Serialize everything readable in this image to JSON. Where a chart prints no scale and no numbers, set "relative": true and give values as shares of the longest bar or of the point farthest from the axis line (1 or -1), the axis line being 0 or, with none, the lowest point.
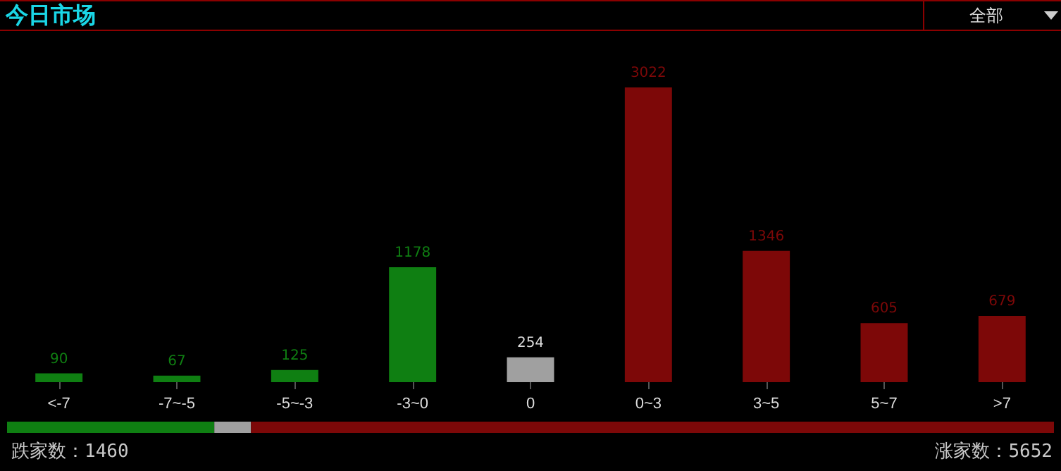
{
  "chart_data": [
    {
      "type": "bar",
      "title": "今日市场",
      "annotations": [
        "全部"
      ],
      "categories": [
        "<-7",
        "-7~-5",
        "-5~-3",
        "-3~0",
        "0",
        "0~3",
        "3~5",
        "5~7",
        ">7"
      ],
      "values": [
        90,
        67,
        125,
        1178,
        254,
        3022,
        1346,
        605,
        679
      ],
      "colors": [
        "#0f7f12",
        "#0f7f12",
        "#0f7f12",
        "#0f7f12",
        "#a0a0a0",
        "#7d0808",
        "#7d0808",
        "#7d0808",
        "#7d0808"
      ],
      "data_labels": true
    },
    {
      "type": "bar",
      "orientation": "horizontal",
      "stacked": true,
      "relative": true,
      "categories": [
        null
      ],
      "tick_labels": false,
      "annotations": [
        "跌家数：1460",
        "涨家数：5652"
      ],
      "series": [
        {
          "color": "#0f7f12",
          "values": [
            0.198
          ]
        },
        {
          "color": "#a0a0a0",
          "values": [
            0.035
          ]
        },
        {
          "color": "#7d0808",
          "values": [
            0.767
          ]
        }
      ]
    }
  ]
}
